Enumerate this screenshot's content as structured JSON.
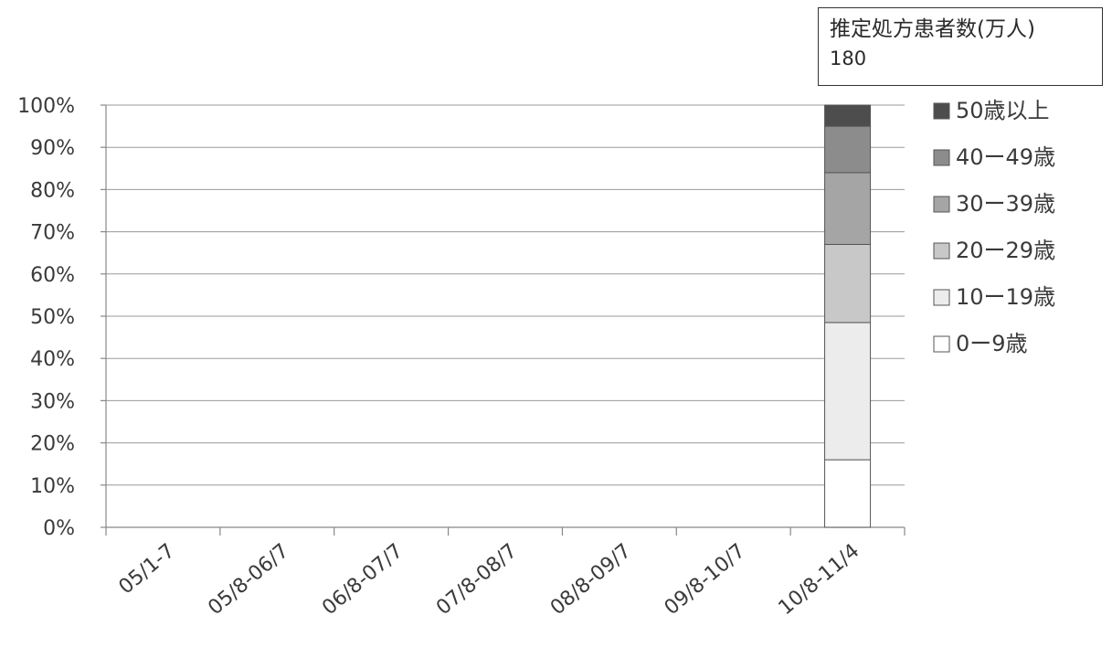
{
  "annotation": {
    "label": "推定処方患者数(万人)",
    "value": "180"
  },
  "chart_data": {
    "type": "bar",
    "stacked": true,
    "normalized": true,
    "categories": [
      "05/1-7",
      "05/8-06/7",
      "06/8-07/7",
      "07/8-08/7",
      "08/8-09/7",
      "09/8-10/7",
      "10/8-11/4"
    ],
    "yticks": [
      "0%",
      "10%",
      "20%",
      "30%",
      "40%",
      "50%",
      "60%",
      "70%",
      "80%",
      "90%",
      "100%"
    ],
    "ylim": [
      0,
      100
    ],
    "grid": true,
    "legend_position": "right",
    "series": [
      {
        "name": "0ー9歳",
        "color": "#ffffff",
        "values": [
          null,
          null,
          null,
          null,
          null,
          null,
          16
        ]
      },
      {
        "name": "10ー19歳",
        "color": "#ececec",
        "values": [
          null,
          null,
          null,
          null,
          null,
          null,
          32.5
        ]
      },
      {
        "name": "20ー29歳",
        "color": "#c8c8c8",
        "values": [
          null,
          null,
          null,
          null,
          null,
          null,
          18.5
        ]
      },
      {
        "name": "30ー39歳",
        "color": "#a5a5a5",
        "values": [
          null,
          null,
          null,
          null,
          null,
          null,
          17
        ]
      },
      {
        "name": "40ー49歳",
        "color": "#8c8c8c",
        "values": [
          null,
          null,
          null,
          null,
          null,
          null,
          11
        ]
      },
      {
        "name": "50歳以上",
        "color": "#4d4d4d",
        "values": [
          null,
          null,
          null,
          null,
          null,
          null,
          5
        ]
      }
    ]
  }
}
